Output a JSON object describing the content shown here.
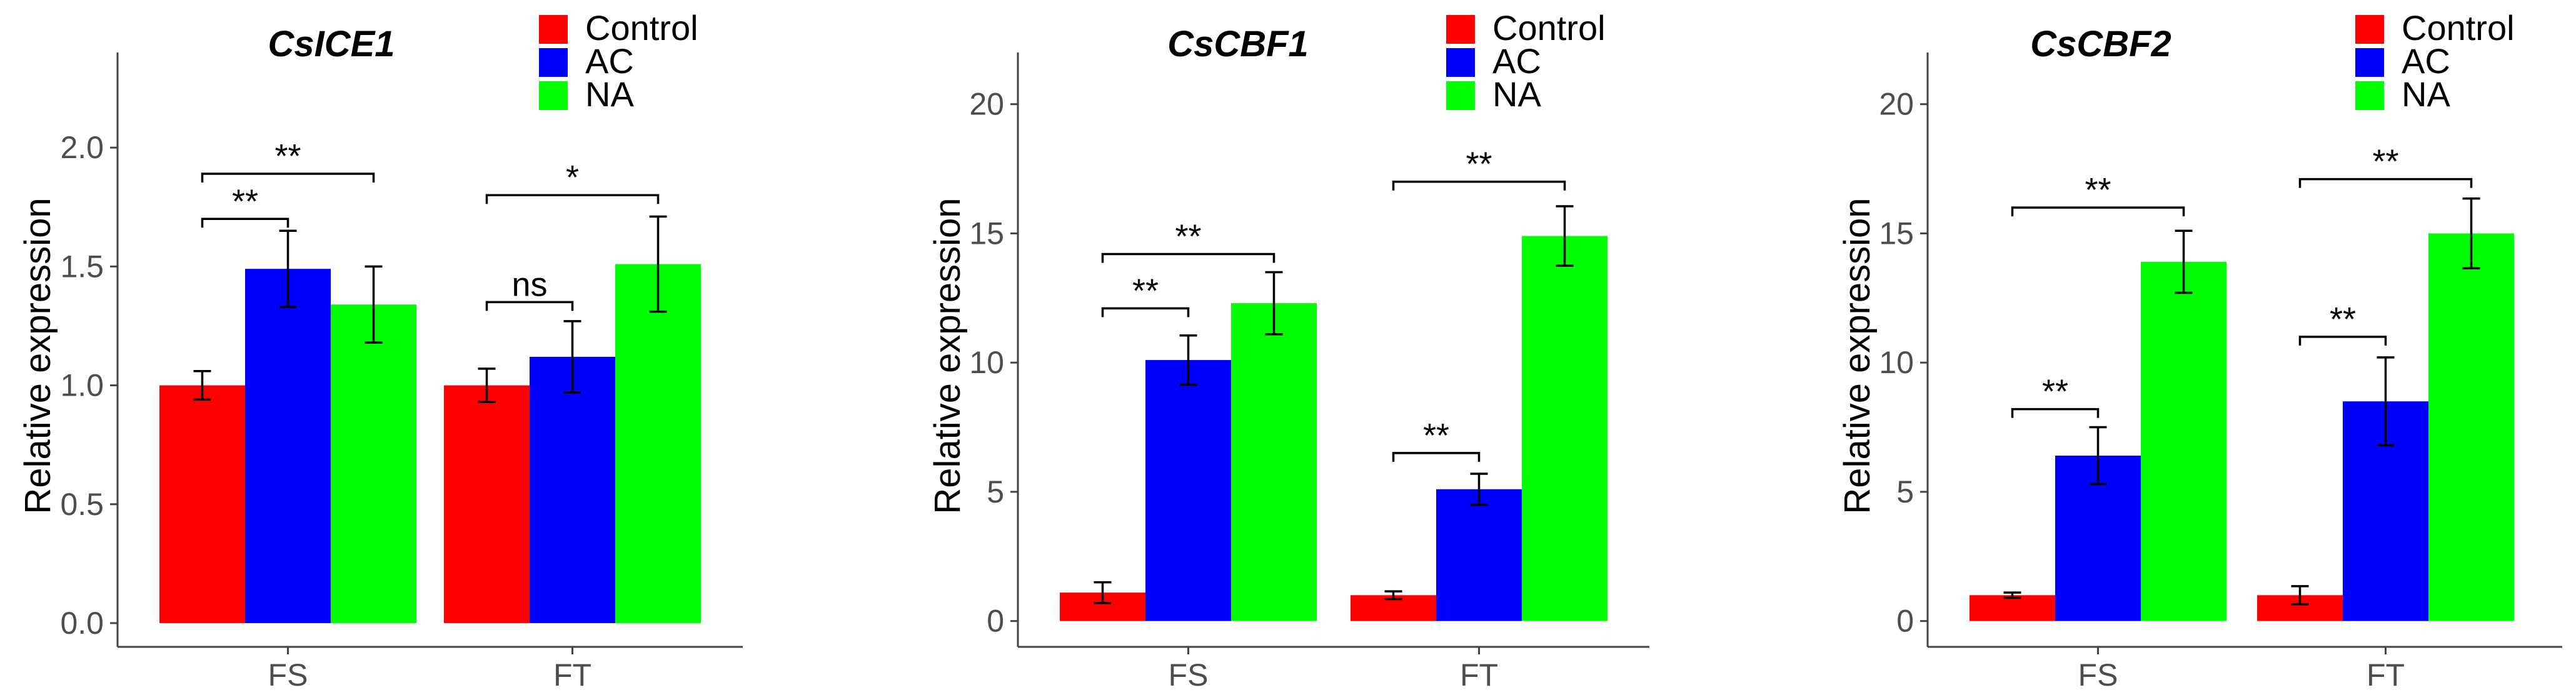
{
  "colors": {
    "Control": "#ff0000",
    "AC": "#0000ff",
    "NA": "#00ff00"
  },
  "chart_data": [
    {
      "type": "bar",
      "title": "CsICE1",
      "xlabel": "",
      "ylabel": "Relative expression",
      "categories": [
        "FS",
        "FT"
      ],
      "ylim": [
        -0.1,
        2.4
      ],
      "yticks": [
        0.0,
        0.5,
        1.0,
        1.5,
        2.0
      ],
      "ytick_labels": [
        "0.0",
        "0.5",
        "1.0",
        "1.5",
        "2.0"
      ],
      "series": [
        {
          "name": "Control",
          "values": [
            1.0,
            1.0
          ],
          "errors": [
            0.06,
            0.07
          ]
        },
        {
          "name": "AC",
          "values": [
            1.49,
            1.12
          ],
          "errors": [
            0.16,
            0.15
          ]
        },
        {
          "name": "NA",
          "values": [
            1.34,
            1.51
          ],
          "errors": [
            0.16,
            0.2
          ]
        }
      ],
      "annotations": [
        {
          "category": "FS",
          "from": "Control",
          "to": "AC",
          "y": 1.7,
          "label": "**"
        },
        {
          "category": "FS",
          "from": "Control",
          "to": "NA",
          "y": 1.89,
          "label": "**"
        },
        {
          "category": "FT",
          "from": "Control",
          "to": "AC",
          "y": 1.35,
          "label": "ns"
        },
        {
          "category": "FT",
          "from": "Control",
          "to": "NA",
          "y": 1.8,
          "label": "*"
        }
      ],
      "legend": {
        "position": "top-right",
        "entries": [
          "Control",
          "AC",
          "NA"
        ]
      }
    },
    {
      "type": "bar",
      "title": "CsCBF1",
      "xlabel": "",
      "ylabel": "Relative expression",
      "categories": [
        "FS",
        "FT"
      ],
      "ylim": [
        -1,
        22
      ],
      "yticks": [
        0,
        5,
        10,
        15,
        20
      ],
      "ytick_labels": [
        "0",
        "5",
        "10",
        "15",
        "20"
      ],
      "series": [
        {
          "name": "Control",
          "values": [
            1.1,
            1.0
          ],
          "errors": [
            0.4,
            0.15
          ]
        },
        {
          "name": "AC",
          "values": [
            10.1,
            5.1
          ],
          "errors": [
            0.95,
            0.6
          ]
        },
        {
          "name": "NA",
          "values": [
            12.3,
            14.9
          ],
          "errors": [
            1.2,
            1.15
          ]
        }
      ],
      "annotations": [
        {
          "category": "FS",
          "from": "Control",
          "to": "AC",
          "y": 12.1,
          "label": "**"
        },
        {
          "category": "FS",
          "from": "Control",
          "to": "NA",
          "y": 14.2,
          "label": "**"
        },
        {
          "category": "FT",
          "from": "Control",
          "to": "AC",
          "y": 6.5,
          "label": "**"
        },
        {
          "category": "FT",
          "from": "Control",
          "to": "NA",
          "y": 17.0,
          "label": "**"
        }
      ],
      "legend": {
        "position": "top-right",
        "entries": [
          "Control",
          "AC",
          "NA"
        ]
      }
    },
    {
      "type": "bar",
      "title": "CsCBF2",
      "xlabel": "",
      "ylabel": "Relative expression",
      "categories": [
        "FS",
        "FT"
      ],
      "ylim": [
        -1,
        22
      ],
      "yticks": [
        0,
        5,
        10,
        15,
        20
      ],
      "ytick_labels": [
        "0",
        "5",
        "10",
        "15",
        "20"
      ],
      "series": [
        {
          "name": "Control",
          "values": [
            1.0,
            1.0
          ],
          "errors": [
            0.1,
            0.35
          ]
        },
        {
          "name": "AC",
          "values": [
            6.4,
            8.5
          ],
          "errors": [
            1.1,
            1.7
          ]
        },
        {
          "name": "NA",
          "values": [
            13.9,
            15.0
          ],
          "errors": [
            1.2,
            1.35
          ]
        }
      ],
      "annotations": [
        {
          "category": "FS",
          "from": "Control",
          "to": "AC",
          "y": 8.2,
          "label": "**"
        },
        {
          "category": "FS",
          "from": "Control",
          "to": "NA",
          "y": 16.0,
          "label": "**"
        },
        {
          "category": "FT",
          "from": "Control",
          "to": "AC",
          "y": 11.0,
          "label": "**"
        },
        {
          "category": "FT",
          "from": "Control",
          "to": "NA",
          "y": 17.1,
          "label": "**"
        }
      ],
      "legend": {
        "position": "top-right",
        "entries": [
          "Control",
          "AC",
          "NA"
        ]
      }
    }
  ]
}
